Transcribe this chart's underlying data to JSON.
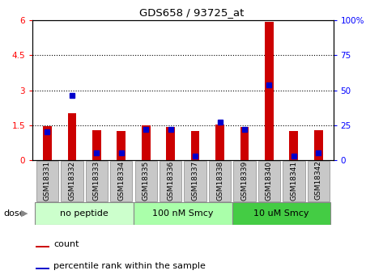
{
  "title": "GDS658 / 93725_at",
  "samples": [
    "GSM18331",
    "GSM18332",
    "GSM18333",
    "GSM18334",
    "GSM18335",
    "GSM18336",
    "GSM18337",
    "GSM18338",
    "GSM18339",
    "GSM18340",
    "GSM18341",
    "GSM18342"
  ],
  "count_values": [
    1.45,
    2.0,
    1.28,
    1.25,
    1.48,
    1.42,
    1.25,
    1.52,
    1.42,
    5.92,
    1.25,
    1.28
  ],
  "percentile_values": [
    20,
    46,
    5,
    5,
    22,
    22,
    3,
    27,
    22,
    54,
    3,
    5
  ],
  "ylim_left": [
    0,
    6
  ],
  "ylim_right": [
    0,
    100
  ],
  "yticks_left": [
    0,
    1.5,
    3.0,
    4.5,
    6.0
  ],
  "yticks_right": [
    0,
    25,
    50,
    75,
    100
  ],
  "ytick_labels_right": [
    "0",
    "25",
    "50",
    "75",
    "100%"
  ],
  "bar_color": "#cc0000",
  "percentile_color": "#0000cc",
  "bg_plot": "#ffffff",
  "tick_label_bg": "#c8c8c8",
  "group_colors": [
    "#ccffcc",
    "#aaffaa",
    "#44cc44"
  ],
  "group_labels": [
    "no peptide",
    "100 nM Smcy",
    "10 uM Smcy"
  ],
  "group_ranges": [
    [
      0,
      3
    ],
    [
      4,
      7
    ],
    [
      8,
      11
    ]
  ],
  "dose_label": "dose",
  "legend_count_label": "count",
  "legend_percentile_label": "percentile rank within the sample",
  "bar_width": 0.35
}
